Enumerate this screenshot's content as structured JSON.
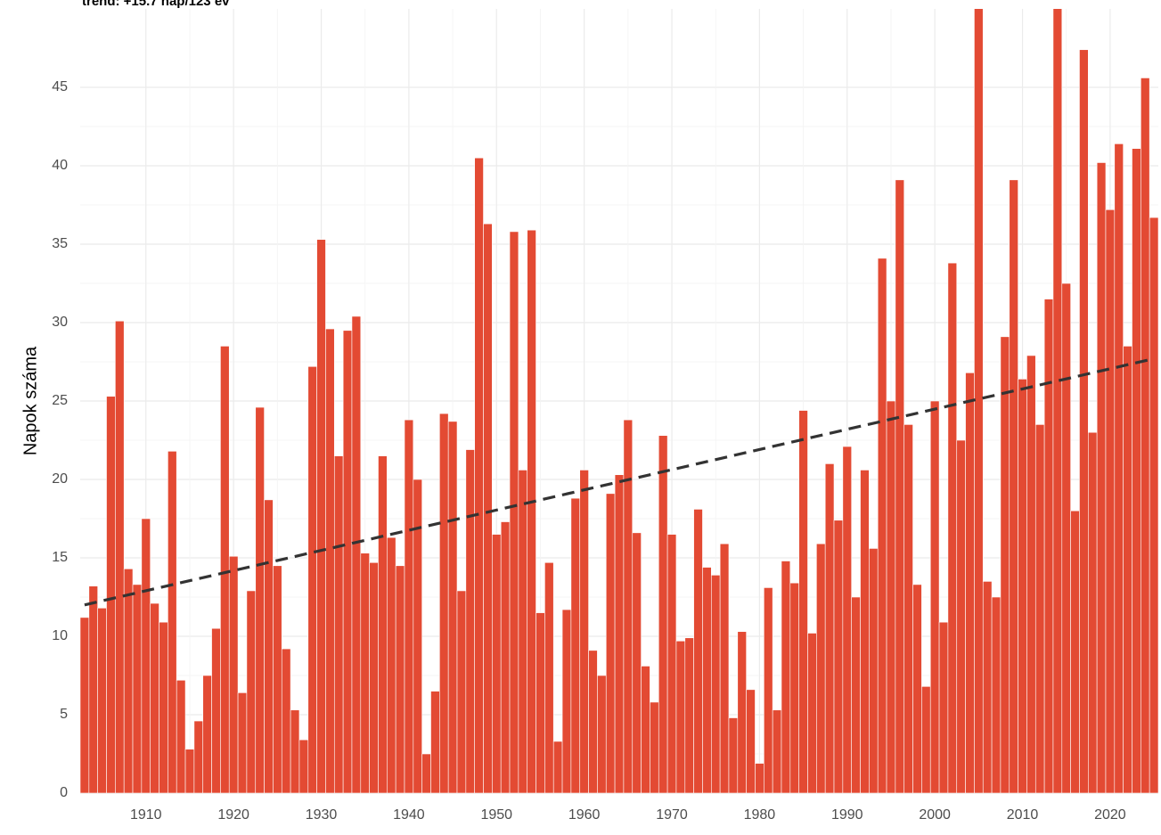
{
  "chart_data": {
    "type": "bar",
    "title": "trend: +15.7 nap/123 év",
    "y_label": "Napok száma",
    "x": [
      1903,
      1904,
      1905,
      1906,
      1907,
      1908,
      1909,
      1910,
      1911,
      1912,
      1913,
      1914,
      1915,
      1916,
      1917,
      1918,
      1919,
      1920,
      1921,
      1922,
      1923,
      1924,
      1925,
      1926,
      1927,
      1928,
      1929,
      1930,
      1931,
      1932,
      1933,
      1934,
      1935,
      1936,
      1937,
      1938,
      1939,
      1940,
      1941,
      1942,
      1943,
      1944,
      1945,
      1946,
      1947,
      1948,
      1949,
      1950,
      1951,
      1952,
      1953,
      1954,
      1955,
      1956,
      1957,
      1958,
      1959,
      1960,
      1961,
      1962,
      1963,
      1964,
      1965,
      1966,
      1967,
      1968,
      1969,
      1970,
      1971,
      1972,
      1973,
      1974,
      1975,
      1976,
      1977,
      1978,
      1979,
      1980,
      1981,
      1982,
      1983,
      1984,
      1985,
      1986,
      1987,
      1988,
      1989,
      1990,
      1991,
      1992,
      1993,
      1994,
      1995,
      1996,
      1997,
      1998,
      1999,
      2000,
      2001,
      2002,
      2003,
      2004,
      2005,
      2006,
      2007,
      2008,
      2009,
      2010,
      2011,
      2012,
      2013,
      2014,
      2015,
      2016,
      2017,
      2018,
      2019,
      2020,
      2021,
      2022,
      2023,
      2024,
      2025
    ],
    "values": [
      11.2,
      13.2,
      11.8,
      25.3,
      30.1,
      14.3,
      13.3,
      17.5,
      12.1,
      10.9,
      21.8,
      7.2,
      2.8,
      4.6,
      7.5,
      10.5,
      28.5,
      15.1,
      6.4,
      12.9,
      24.6,
      18.7,
      14.5,
      9.2,
      5.3,
      3.4,
      27.2,
      35.3,
      29.6,
      21.5,
      29.5,
      30.4,
      15.3,
      14.7,
      21.5,
      16.3,
      14.5,
      23.8,
      20.0,
      2.5,
      6.5,
      24.2,
      23.7,
      12.9,
      21.9,
      40.5,
      36.3,
      16.5,
      17.3,
      35.8,
      20.6,
      35.9,
      11.5,
      14.7,
      3.3,
      11.7,
      18.8,
      20.6,
      9.1,
      7.5,
      19.1,
      20.3,
      23.8,
      16.6,
      8.1,
      5.8,
      22.8,
      16.5,
      9.7,
      9.9,
      18.1,
      14.4,
      13.9,
      15.9,
      4.8,
      10.3,
      6.6,
      1.9,
      13.1,
      5.3,
      14.8,
      13.4,
      24.4,
      10.2,
      15.9,
      21.0,
      17.4,
      22.1,
      12.5,
      20.6,
      15.6,
      34.1,
      25.0,
      39.1,
      23.5,
      13.3,
      6.8,
      25.0,
      10.9,
      33.8,
      22.5,
      26.8,
      52,
      13.5,
      12.5,
      29.1,
      39.1,
      26.4,
      27.9,
      23.5,
      31.5,
      52,
      32.5,
      18.0,
      47.4,
      23.0,
      40.2,
      37.2,
      41.4,
      28.5,
      41.1,
      45.6,
      36.7
    ],
    "color": "#e34a33",
    "trend": {
      "x": [
        1903,
        2025
      ],
      "values": [
        12.0,
        27.7
      ],
      "color": "#333333"
    },
    "xlim": [
      1902.5,
      2025.5
    ],
    "xticks": [
      1910,
      1920,
      1930,
      1940,
      1950,
      1960,
      1970,
      1980,
      1990,
      2000,
      2010,
      2020
    ],
    "ylim": [
      0,
      50
    ],
    "yticks": [
      0,
      5,
      10,
      15,
      20,
      25,
      30,
      35,
      40,
      45
    ],
    "grid": true
  }
}
